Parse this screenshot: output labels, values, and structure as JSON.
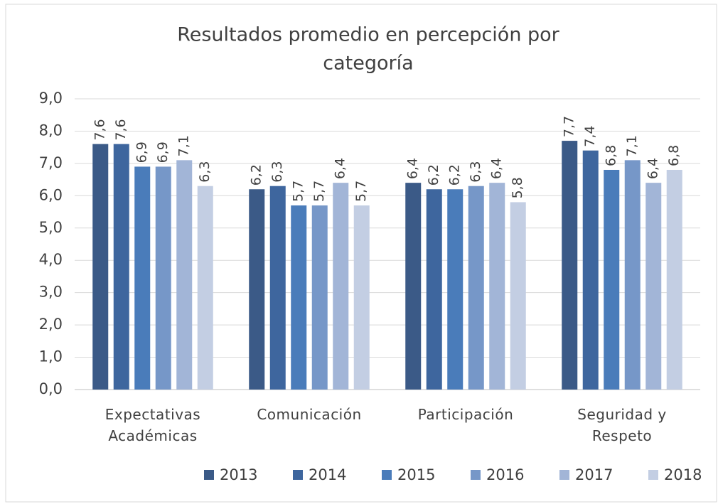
{
  "chart_data": {
    "type": "bar",
    "title": [
      "Resultados promedio en percepción por",
      "categoría"
    ],
    "categories": [
      "Expectativas Académicas",
      "Comunicación",
      "Participación",
      "Seguridad y Respeto"
    ],
    "series": [
      {
        "name": "2013",
        "color": "#3b5a87",
        "values": [
          7.6,
          6.2,
          6.4,
          7.7
        ],
        "value_labels": [
          "7,6",
          "6,2",
          "6,4",
          "7,7"
        ]
      },
      {
        "name": "2014",
        "color": "#3e669e",
        "values": [
          7.6,
          6.3,
          6.2,
          7.4
        ],
        "value_labels": [
          "7,6",
          "6,3",
          "6,2",
          "7,4"
        ]
      },
      {
        "name": "2015",
        "color": "#4a7cba",
        "values": [
          6.9,
          5.7,
          6.2,
          6.8
        ],
        "value_labels": [
          "6,9",
          "5,7",
          "6,2",
          "6,8"
        ]
      },
      {
        "name": "2016",
        "color": "#7697c8",
        "values": [
          6.9,
          5.7,
          6.3,
          7.1
        ],
        "value_labels": [
          "6,9",
          "5,7",
          "6,3",
          "7,1"
        ]
      },
      {
        "name": "2017",
        "color": "#a2b5d7",
        "values": [
          7.1,
          6.4,
          6.4,
          6.4
        ],
        "value_labels": [
          "7,1",
          "6,4",
          "6,4",
          "6,4"
        ]
      },
      {
        "name": "2018",
        "color": "#c3cee3",
        "values": [
          6.3,
          5.7,
          5.8,
          6.8
        ],
        "value_labels": [
          "6,3",
          "5,7",
          "5,8",
          "6,8"
        ]
      }
    ],
    "ylim": [
      0,
      9
    ],
    "yticks": [
      {
        "value": 0,
        "label": "0,0"
      },
      {
        "value": 1,
        "label": "1,0"
      },
      {
        "value": 2,
        "label": "2,0"
      },
      {
        "value": 3,
        "label": "3,0"
      },
      {
        "value": 4,
        "label": "4,0"
      },
      {
        "value": 5,
        "label": "5,0"
      },
      {
        "value": 6,
        "label": "6,0"
      },
      {
        "value": 7,
        "label": "7,0"
      },
      {
        "value": 8,
        "label": "8,0"
      },
      {
        "value": 9,
        "label": "9,0"
      }
    ],
    "grid": true,
    "legend": "bottom"
  }
}
